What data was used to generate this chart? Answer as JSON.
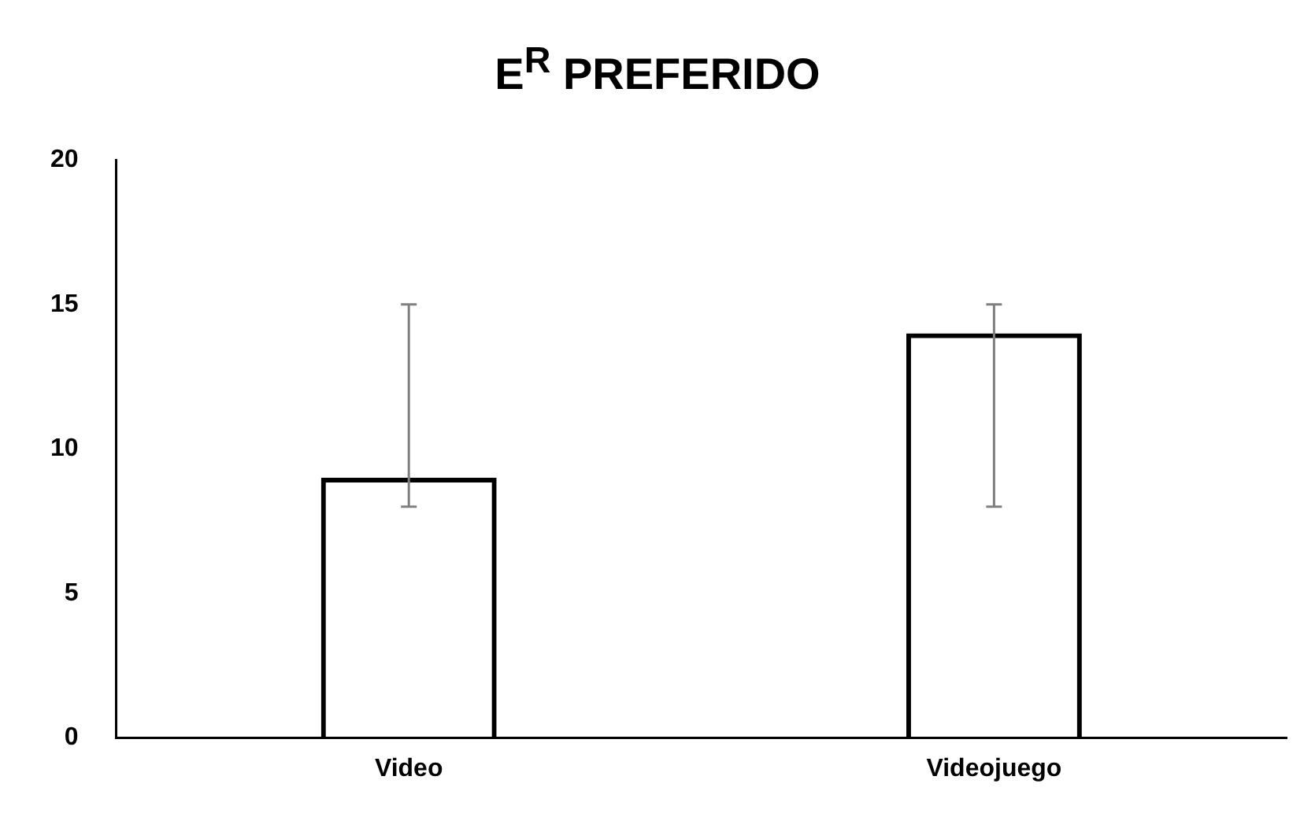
{
  "chart_data": {
    "type": "bar",
    "title": "E$^{R}$  PREFERIDO",
    "categories": [
      "Video",
      "Videojuego"
    ],
    "series": [
      {
        "color": "#000000",
        "values": [
          9,
          14
        ],
        "errors": [
          [
            8,
            15
          ],
          [
            8,
            15
          ]
        ]
      }
    ],
    "ylim": [
      0,
      20
    ],
    "yticks": [
      0,
      5,
      10,
      15,
      20
    ],
    "grid": false,
    "legend": false
  }
}
